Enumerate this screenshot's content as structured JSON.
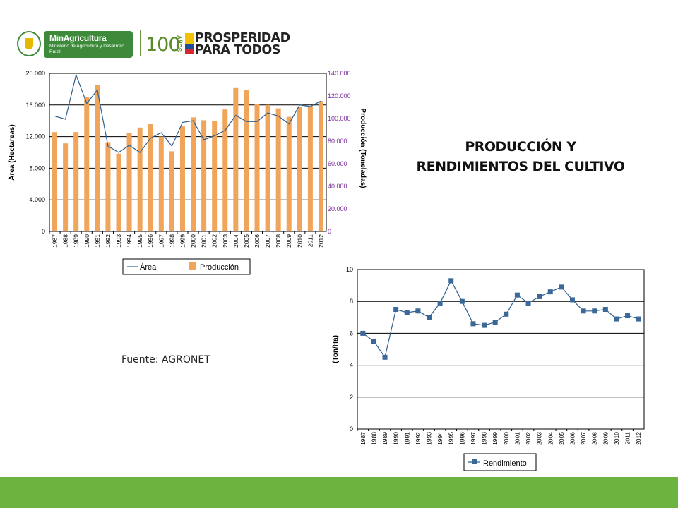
{
  "header": {
    "ministry_name": "MinAgricultura",
    "ministry_subtitle": "Ministerio de Agricultura y Desarrollo Rural",
    "years_number": "100",
    "years_word": "AÑOS",
    "slogan_line1": "PROSPERIDAD",
    "slogan_line2": "PARA TODOS"
  },
  "slide": {
    "title_line1": "PRODUCCIÓN Y",
    "title_line2": "RENDIMIENTOS DEL CULTIVO",
    "source": "Fuente: AGRONET"
  },
  "colors": {
    "bar": "#f0a55a",
    "line": "#2f5f8f",
    "marker": "#3a6898",
    "right_axis_text": "#7b2b9a",
    "footer": "#6cb33f"
  },
  "chart_data": [
    {
      "type": "bar",
      "combo": "bar+line",
      "categories": [
        "1987",
        "1988",
        "1989",
        "1990",
        "1991",
        "1992",
        "1993",
        "1994",
        "1995",
        "1996",
        "1997",
        "1998",
        "1999",
        "2000",
        "2001",
        "2002",
        "2003",
        "2004",
        "2005",
        "2006",
        "2007",
        "2008",
        "2009",
        "2010",
        "2011",
        "2012"
      ],
      "ylabel": "Área (Hectareas)",
      "y2label": "Producción (Toneladas)",
      "ylim": [
        0,
        20000
      ],
      "y2lim": [
        0,
        140000
      ],
      "y_ticks": [
        "0",
        "4.000",
        "8.000",
        "12.000",
        "16.000",
        "20.000"
      ],
      "y2_ticks": [
        "0",
        "20.000",
        "40.000",
        "60.000",
        "80.000",
        "100.000",
        "120.000",
        "140.000"
      ],
      "grid": true,
      "legend": "bottom",
      "series": [
        {
          "name": "Área",
          "type": "line",
          "axis": "left",
          "values": [
            14600,
            14200,
            19800,
            16200,
            17900,
            10800,
            10000,
            10900,
            10000,
            11800,
            12500,
            10800,
            13800,
            14000,
            11600,
            12100,
            12800,
            14700,
            13900,
            13900,
            15000,
            14600,
            13600,
            16000,
            15800,
            16500
          ]
        },
        {
          "name": "Producción",
          "type": "bar",
          "axis": "right",
          "values": [
            88000,
            78000,
            88000,
            119000,
            130000,
            79000,
            69000,
            87000,
            92000,
            95000,
            84000,
            71000,
            93000,
            101000,
            98500,
            98000,
            108000,
            127000,
            125000,
            113000,
            112000,
            109000,
            101500,
            110000,
            111000,
            115500
          ]
        }
      ]
    },
    {
      "type": "line",
      "categories": [
        "1987",
        "1988",
        "1989",
        "1990",
        "1991",
        "1992",
        "1993",
        "1994",
        "1995",
        "1996",
        "1997",
        "1998",
        "1999",
        "2000",
        "2001",
        "2002",
        "2003",
        "2004",
        "2005",
        "2006",
        "2007",
        "2008",
        "2009",
        "2010",
        "2011",
        "2012"
      ],
      "ylabel": "(Ton/Ha)",
      "ylim": [
        0,
        10
      ],
      "y_ticks": [
        "0",
        "2",
        "4",
        "6",
        "8",
        "10"
      ],
      "grid": true,
      "legend": "bottom",
      "series": [
        {
          "name": "Rendimiento",
          "values": [
            6.0,
            5.5,
            4.5,
            7.5,
            7.3,
            7.4,
            7.0,
            7.9,
            9.3,
            8.0,
            6.6,
            6.5,
            6.7,
            7.2,
            8.4,
            7.9,
            8.3,
            8.6,
            8.9,
            8.1,
            7.4,
            7.4,
            7.5,
            6.9,
            7.1,
            6.9
          ]
        }
      ]
    }
  ]
}
